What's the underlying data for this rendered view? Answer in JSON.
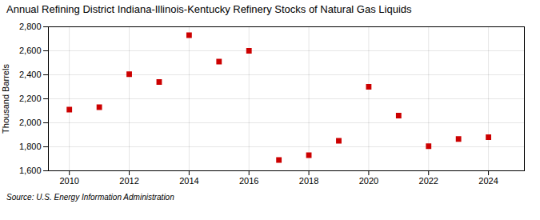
{
  "chart_data": {
    "type": "scatter",
    "title": "Annual Refining District Indiana-Illinois-Kentucky Refinery Stocks of Natural Gas Liquids",
    "ylabel": "Thousand Barrels",
    "source": "Source: U.S. Energy Information Administration",
    "x": [
      2010,
      2011,
      2012,
      2013,
      2014,
      2015,
      2016,
      2017,
      2018,
      2019,
      2020,
      2021,
      2022,
      2023,
      2024
    ],
    "values": [
      2110,
      2130,
      2405,
      2340,
      2730,
      2510,
      2600,
      1690,
      1730,
      1850,
      2300,
      2060,
      1805,
      1865,
      1880
    ],
    "color": "#cc0000",
    "marker": "square",
    "xlim": [
      2009.3,
      2025.2
    ],
    "xticks": [
      2010,
      2012,
      2014,
      2016,
      2018,
      2020,
      2022,
      2024
    ],
    "ylim": [
      1600,
      2800
    ],
    "yticks": [
      {
        "value": 1600,
        "label": "1,600"
      },
      {
        "value": 1800,
        "label": "1,800"
      },
      {
        "value": 2000,
        "label": "2,000"
      },
      {
        "value": 2200,
        "label": "2,200"
      },
      {
        "value": 2400,
        "label": "2,400"
      },
      {
        "value": 2600,
        "label": "2,600"
      },
      {
        "value": 2800,
        "label": "2,800"
      }
    ],
    "grid": true
  }
}
